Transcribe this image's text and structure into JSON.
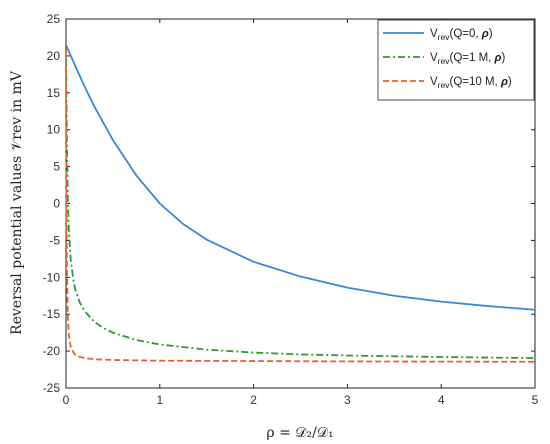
{
  "chart_data": {
    "type": "line",
    "xlabel": "ρ = 𝒟₂/𝒟₁",
    "ylabel": "Reversal potential values 𝒱rev in mV",
    "xlim": [
      0,
      5
    ],
    "ylim": [
      -25,
      25
    ],
    "x_ticks": [
      0,
      1,
      2,
      3,
      4,
      5
    ],
    "x_tick_labels": [
      "0",
      "1",
      "2",
      "3",
      "4",
      "5"
    ],
    "y_ticks": [
      25,
      20,
      15,
      10,
      5,
      0,
      -5,
      -10,
      -15,
      -20,
      -25
    ],
    "y_tick_labels": [
      "25",
      "20",
      "15",
      "10",
      "5",
      "0",
      "-5",
      "-10",
      "-15",
      "-20",
      "-25"
    ],
    "grid": false,
    "legend_position": "top-right",
    "series": [
      {
        "name": "Vrev(Q=0, ρ)",
        "legend_main": "V",
        "legend_sub": "rev",
        "legend_rest": "(Q=0, ",
        "legend_rho": "ρ",
        "legend_close": ")",
        "color": "#3a86d8",
        "dash": "solid",
        "x": [
          0,
          0.1,
          0.2,
          0.3,
          0.5,
          0.75,
          1.0,
          1.25,
          1.5,
          2.0,
          2.5,
          3.0,
          3.5,
          4.0,
          4.5,
          5.0
        ],
        "y": [
          21.5,
          18.6,
          15.8,
          13.2,
          8.6,
          3.8,
          0.0,
          -2.8,
          -4.9,
          -7.9,
          -9.9,
          -11.4,
          -12.5,
          -13.3,
          -13.9,
          -14.4
        ]
      },
      {
        "name": "Vrev(Q=1 M, ρ)",
        "legend_main": "V",
        "legend_sub": "rev",
        "legend_rest": "(Q=1 M, ",
        "legend_rho": "ρ",
        "legend_close": ")",
        "color": "#2e9a2e",
        "dash": "dashdot",
        "x": [
          0,
          0.005,
          0.01,
          0.02,
          0.03,
          0.05,
          0.08,
          0.1,
          0.15,
          0.2,
          0.3,
          0.4,
          0.5,
          0.75,
          1.0,
          1.5,
          2.0,
          2.5,
          3.0,
          4.0,
          5.0
        ],
        "y": [
          21.5,
          14.0,
          8.0,
          0.5,
          -3.5,
          -7.5,
          -10.5,
          -11.7,
          -13.5,
          -14.6,
          -16.0,
          -16.9,
          -17.5,
          -18.5,
          -19.1,
          -19.8,
          -20.2,
          -20.45,
          -20.6,
          -20.8,
          -20.95
        ]
      },
      {
        "name": "Vrev(Q=10 M, ρ)",
        "legend_main": "V",
        "legend_sub": "rev",
        "legend_rest": "(Q=10 M, ",
        "legend_rho": "ρ",
        "legend_close": ")",
        "color": "#e3622a",
        "dash": "dashed",
        "x": [
          0,
          0.002,
          0.005,
          0.01,
          0.02,
          0.03,
          0.05,
          0.08,
          0.1,
          0.15,
          0.2,
          0.3,
          0.5,
          1.0,
          2.0,
          3.0,
          5.0
        ],
        "y": [
          21.5,
          10.0,
          0.0,
          -9.0,
          -15.5,
          -17.8,
          -19.4,
          -20.2,
          -20.5,
          -20.8,
          -20.95,
          -21.1,
          -21.2,
          -21.3,
          -21.35,
          -21.4,
          -21.45
        ]
      }
    ]
  }
}
